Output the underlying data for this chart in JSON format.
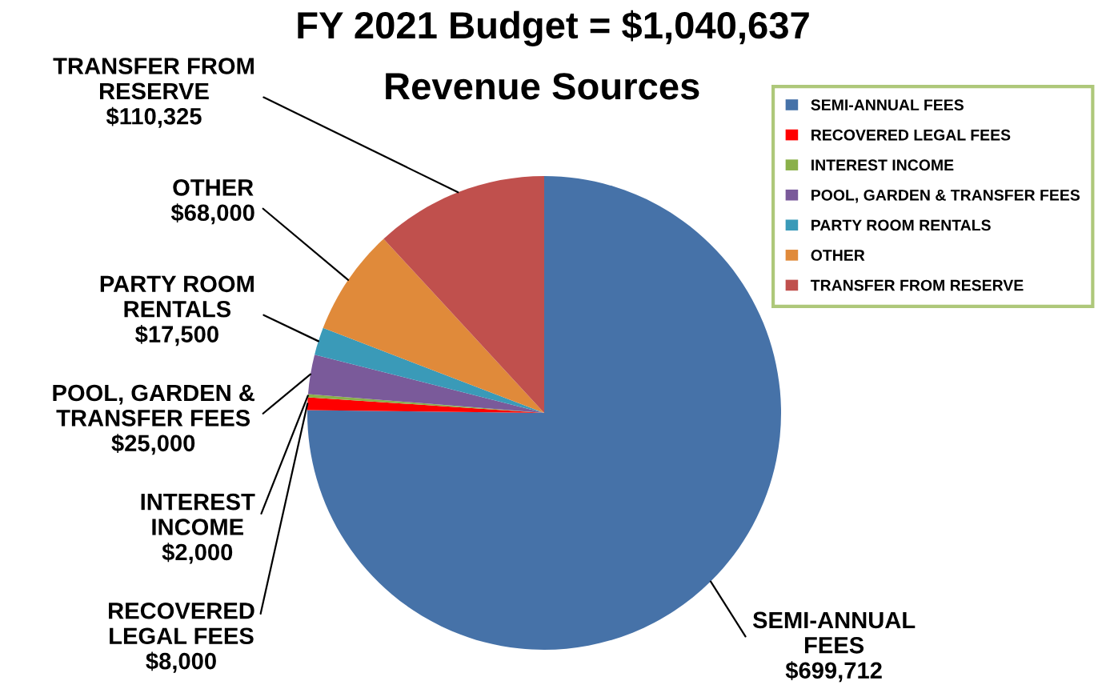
{
  "chart_data": {
    "type": "pie",
    "title": "FY 2021 Budget = $1,040,637",
    "subtitle": "Revenue Sources",
    "categories": [
      "SEMI-ANNUAL FEES",
      "RECOVERED LEGAL FEES",
      "INTEREST INCOME",
      "POOL, GARDEN & TRANSFER FEES",
      "PARTY ROOM RENTALS",
      "OTHER",
      "TRANSFER FROM RESERVE"
    ],
    "values": [
      699712,
      8000,
      2000,
      25000,
      17500,
      68000,
      110325
    ],
    "value_labels": [
      "$699,712",
      "$8,000",
      "$2,000",
      "$25,000",
      "$17,500",
      "$68,000",
      "$110,325"
    ],
    "colors": [
      "#4672a8",
      "#ff0000",
      "#8ab04a",
      "#7a5a9a",
      "#3a9ab8",
      "#e08a3a",
      "#c0504d"
    ],
    "legend": "top right"
  }
}
